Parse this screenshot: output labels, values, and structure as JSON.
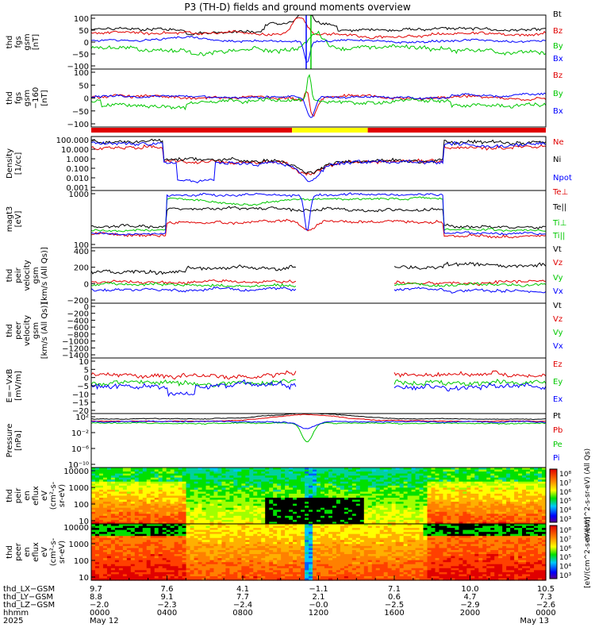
{
  "title": "P3 (TH-D) fields and ground moments overview",
  "colors": {
    "black": "#000000",
    "red": "#e00000",
    "green": "#00c800",
    "blue": "#0000ff",
    "yellow": "#ffff00"
  },
  "chart_data": [
    {
      "type": "line",
      "ylabel": [
        "thd",
        "fgs",
        "gsm",
        "[nT]"
      ],
      "yticks": [
        "100",
        "50",
        "0",
        "−50",
        "−100"
      ],
      "ylim": [
        -100,
        100
      ],
      "series": [
        {
          "name": "Bt",
          "color": "#000000"
        },
        {
          "name": "Bz",
          "color": "#e00000"
        },
        {
          "name": "By",
          "color": "#00c800"
        },
        {
          "name": "Bx",
          "color": "#0000ff"
        }
      ]
    },
    {
      "type": "line",
      "ylabel": [
        "thd",
        "fgs",
        "gsm",
        "−160",
        "[nT]"
      ],
      "yticks": [
        "100",
        "50",
        "0",
        "−50",
        "−100"
      ],
      "ylim": [
        -120,
        120
      ],
      "series": [
        {
          "name": "Bz",
          "color": "#e00000"
        },
        {
          "name": "By",
          "color": "#00c800"
        },
        {
          "name": "Bx",
          "color": "#0000ff"
        }
      ]
    },
    {
      "type": "line",
      "ylabel": [
        "Density",
        "[1/cc]"
      ],
      "yticks": [
        "100.000",
        "10.000",
        "1.000",
        "0.100",
        "0.010",
        "0.001"
      ],
      "yscale": "log",
      "series": [
        {
          "name": "Ne",
          "color": "#e00000"
        },
        {
          "name": "Ni",
          "color": "#000000"
        },
        {
          "name": "Npot",
          "color": "#0000ff"
        }
      ]
    },
    {
      "type": "line",
      "ylabel": [
        "magt3",
        "[eV]"
      ],
      "yticks": [
        "1000",
        "100"
      ],
      "yscale": "log",
      "series": [
        {
          "name": "Te⊥",
          "color": "#e00000"
        },
        {
          "name": "Te||",
          "color": "#000000"
        },
        {
          "name": "Ti⊥",
          "color": "#00c800"
        },
        {
          "name": "Ti||",
          "color": "#00c800"
        }
      ]
    },
    {
      "type": "line",
      "ylabel": [
        "thd",
        "peir",
        "velocity",
        "gsm",
        "[km/s (All Qs)]"
      ],
      "yticks": [
        "400",
        "200",
        "0",
        "−200"
      ],
      "ylim": [
        -250,
        420
      ],
      "series": [
        {
          "name": "Vt",
          "color": "#000000"
        },
        {
          "name": "Vz",
          "color": "#e00000"
        },
        {
          "name": "Vy",
          "color": "#00c800"
        },
        {
          "name": "Vx",
          "color": "#0000ff"
        }
      ]
    },
    {
      "type": "line",
      "ylabel": [
        "thd",
        "peer",
        "velocity",
        "gsm",
        "[km/s (All Qs)]"
      ],
      "yticks": [
        "0",
        "−200",
        "−400",
        "−600",
        "−800",
        "−1000",
        "−1200",
        "−1400"
      ],
      "ylim": [
        -1500,
        60
      ],
      "series": [
        {
          "name": "Vt",
          "color": "#000000"
        },
        {
          "name": "Vz",
          "color": "#e00000"
        },
        {
          "name": "Vy",
          "color": "#00c800"
        },
        {
          "name": "Vx",
          "color": "#0000ff"
        }
      ]
    },
    {
      "type": "line",
      "ylabel": [
        "E=−VxB",
        "[mV/m]"
      ],
      "yticks": [
        "10",
        "5",
        "0",
        "−5",
        "−10",
        "−15",
        "−20"
      ],
      "ylim": [
        -20,
        12
      ],
      "series": [
        {
          "name": "Ez",
          "color": "#e00000"
        },
        {
          "name": "Ey",
          "color": "#00c800"
        },
        {
          "name": "Ex",
          "color": "#0000ff"
        }
      ]
    },
    {
      "type": "line",
      "ylabel": [
        "Pressure",
        "[nPa]"
      ],
      "yticks": [
        "10²",
        "10⁻²",
        "10⁻⁶",
        "10⁻¹⁰"
      ],
      "yscale": "log",
      "series": [
        {
          "name": "Pt",
          "color": "#000000"
        },
        {
          "name": "Pb",
          "color": "#e00000"
        },
        {
          "name": "Pe",
          "color": "#00c800"
        },
        {
          "name": "Pi",
          "color": "#0000ff"
        }
      ]
    },
    {
      "type": "heatmap",
      "ylabel": [
        "thd",
        "peir",
        "en",
        "eflux",
        "eV",
        "(cm²-s-",
        "sr-eV)"
      ],
      "yticks": [
        "10000",
        "1000",
        "100",
        "10"
      ],
      "yscale": "log",
      "colorbar": {
        "ticks": [
          "10⁸",
          "10⁷",
          "10⁶",
          "10⁵",
          "10⁴",
          "10³"
        ],
        "label": "eV/(cm^2-s-sr-eV) (All Qs)"
      }
    },
    {
      "type": "heatmap",
      "ylabel": [
        "thd",
        "peer",
        "en",
        "eflux",
        "eV",
        "(cm²-s-",
        "sr-eV)"
      ],
      "yticks": [
        "10000",
        "1000",
        "100",
        "10"
      ],
      "yscale": "log",
      "colorbar": {
        "ticks": [
          "10⁸",
          "10⁷",
          "10⁶",
          "10⁵",
          "10⁴",
          "10³"
        ],
        "label": "[eV/(cm^2-s-sr-eV)]"
      }
    }
  ],
  "x_axis": {
    "row_labels": [
      "thd_LX−GSM",
      "thd_LY−GSM",
      "thd_LZ−GSM",
      "hhmm",
      "2025"
    ],
    "columns": [
      {
        "values": [
          "9.7",
          "8.8",
          "−2.0",
          "0000",
          "May 12"
        ]
      },
      {
        "values": [
          "7.6",
          "9.1",
          "−2.3",
          "0400",
          ""
        ]
      },
      {
        "values": [
          "4.1",
          "7.7",
          "−2.4",
          "0800",
          ""
        ]
      },
      {
        "values": [
          "−1.1",
          "2.1",
          "−0.0",
          "1200",
          ""
        ]
      },
      {
        "values": [
          "7.1",
          "0.6",
          "−2.5",
          "1600",
          ""
        ]
      },
      {
        "values": [
          "10.0",
          "4.7",
          "−2.9",
          "2000",
          ""
        ]
      },
      {
        "values": [
          "10.5",
          "7.3",
          "−2.6",
          "0000",
          "May 13"
        ]
      }
    ]
  }
}
